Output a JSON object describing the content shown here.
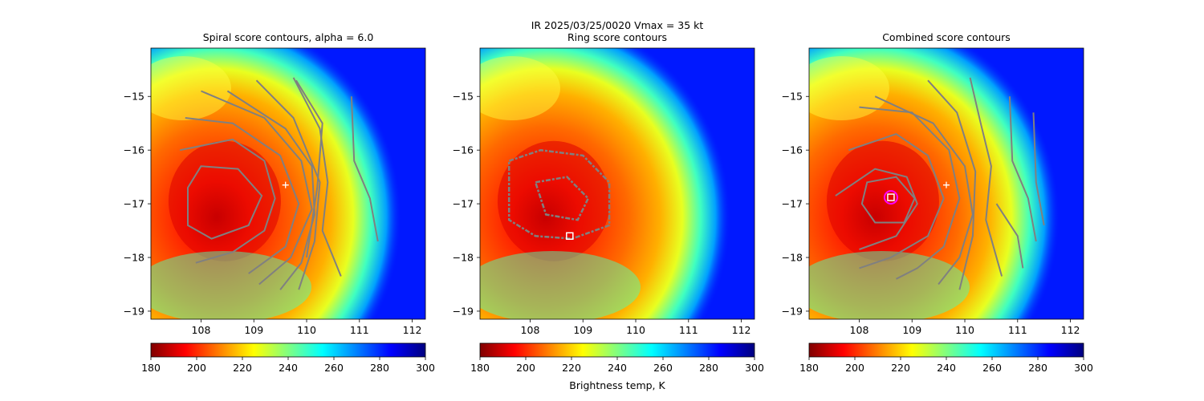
{
  "figure": {
    "suptitle_line1": "IR  2025/03/25/0020    Vmax = 35 kt"
  },
  "colorbar": {
    "label": "Brightness temp, K",
    "range": [
      180,
      300
    ],
    "ticks": [
      180,
      200,
      220,
      240,
      260,
      280,
      300
    ],
    "colormap": "jet_r",
    "stops": [
      "#800000",
      "#ff0000",
      "#ff8000",
      "#ffff00",
      "#80ff80",
      "#00ffff",
      "#0080ff",
      "#0000ff",
      "#000080"
    ]
  },
  "colors": {
    "contour": "#808080",
    "marker_white": "#ffffff",
    "marker_magenta": "#ff00ff"
  },
  "chart_data": [
    {
      "type": "heatmap",
      "title": "Spiral score contours, alpha =  6.0",
      "xlim": [
        107.05,
        112.25
      ],
      "ylim": [
        -19.15,
        -14.1
      ],
      "x_ticks": [
        108,
        109,
        110,
        111,
        112
      ],
      "y_ticks": [
        -15,
        -16,
        -17,
        -18,
        -19
      ],
      "cold_center": {
        "lon": 108.6,
        "lat": -16.95
      },
      "contour_arcs": [
        {
          "lon": [
            107.6,
            108.6,
            109.2,
            109.4,
            109.2,
            108.6,
            107.9
          ],
          "lat": [
            -16.0,
            -15.8,
            -16.2,
            -16.9,
            -17.5,
            -17.9,
            -18.1
          ]
        },
        {
          "lon": [
            107.7,
            108.6,
            109.5,
            109.85,
            109.6,
            108.9
          ],
          "lat": [
            -15.4,
            -15.5,
            -16.1,
            -17.0,
            -17.8,
            -18.3
          ]
        },
        {
          "lon": [
            108.0,
            109.2,
            109.9,
            110.1,
            109.7,
            109.1
          ],
          "lat": [
            -14.9,
            -15.4,
            -16.2,
            -17.1,
            -18.0,
            -18.5
          ]
        },
        {
          "lon": [
            108.5,
            109.6,
            110.1,
            110.15,
            109.9,
            109.5
          ],
          "lat": [
            -14.9,
            -15.6,
            -16.3,
            -17.2,
            -18.1,
            -18.6
          ]
        },
        {
          "lon": [
            109.05,
            109.75,
            110.25,
            110.15,
            109.85
          ],
          "lat": [
            -14.7,
            -15.4,
            -16.6,
            -17.7,
            -18.6
          ]
        },
        {
          "lon": [
            109.8,
            110.3,
            110.2,
            110.0
          ],
          "lat": [
            -14.7,
            -15.5,
            -16.7,
            -18.0
          ]
        },
        {
          "lon": [
            109.75,
            110.25,
            110.4,
            110.3,
            110.65
          ],
          "lat": [
            -14.65,
            -15.6,
            -16.6,
            -17.5,
            -18.35
          ]
        },
        {
          "lon": [
            110.85,
            110.9,
            111.2,
            111.35
          ],
          "lat": [
            -15.0,
            -16.2,
            -16.9,
            -17.7
          ]
        }
      ],
      "closed_contours": [
        {
          "lon": [
            108.0,
            108.7,
            109.15,
            108.9,
            108.2,
            107.75,
            107.75,
            108.0
          ],
          "lat": [
            -16.3,
            -16.35,
            -16.85,
            -17.4,
            -17.65,
            -17.4,
            -16.7,
            -16.3
          ]
        }
      ],
      "markers": [
        {
          "shape": "plus",
          "lon": 109.6,
          "lat": -16.65,
          "color": "#ffffff"
        }
      ]
    },
    {
      "type": "heatmap",
      "title": "Ring score contours",
      "xlim": [
        107.05,
        112.25
      ],
      "ylim": [
        -19.15,
        -14.1
      ],
      "x_ticks": [
        108,
        109,
        110,
        111,
        112
      ],
      "y_ticks": [
        -15,
        -16,
        -17,
        -18,
        -19
      ],
      "cold_center": {
        "lon": 108.6,
        "lat": -16.95
      },
      "contour_arcs": [],
      "closed_contours": [
        {
          "lon": [
            107.6,
            108.2,
            109.0,
            109.5,
            109.5,
            108.8,
            108.1,
            107.6,
            107.6
          ],
          "lat": [
            -16.2,
            -16.0,
            -16.1,
            -16.6,
            -17.4,
            -17.65,
            -17.6,
            -17.3,
            -16.2
          ]
        },
        {
          "lon": [
            108.1,
            108.7,
            109.1,
            108.9,
            108.3,
            108.1
          ],
          "lat": [
            -16.6,
            -16.5,
            -16.9,
            -17.3,
            -17.2,
            -16.6
          ]
        }
      ],
      "markers": [
        {
          "shape": "square",
          "lon": 108.75,
          "lat": -17.6,
          "color": "#ffffff"
        }
      ]
    },
    {
      "type": "heatmap",
      "title": "Combined score contours",
      "xlim": [
        107.05,
        112.25
      ],
      "ylim": [
        -19.15,
        -14.1
      ],
      "x_ticks": [
        108,
        109,
        110,
        111,
        112
      ],
      "y_ticks": [
        -15,
        -16,
        -17,
        -18,
        -19
      ],
      "cold_center": {
        "lon": 108.6,
        "lat": -16.95
      },
      "contour_arcs": [
        {
          "lon": [
            107.55,
            108.3,
            108.9,
            109.1,
            108.7,
            108.0
          ],
          "lat": [
            -16.85,
            -16.35,
            -16.5,
            -17.0,
            -17.6,
            -17.85
          ]
        },
        {
          "lon": [
            107.8,
            108.7,
            109.3,
            109.6,
            109.3,
            108.6,
            108.0
          ],
          "lat": [
            -16.0,
            -15.7,
            -16.1,
            -16.9,
            -17.6,
            -18.0,
            -18.2
          ]
        },
        {
          "lon": [
            108.0,
            109.0,
            109.7,
            109.9,
            109.6,
            109.1,
            108.7
          ],
          "lat": [
            -15.2,
            -15.3,
            -16.0,
            -16.9,
            -17.8,
            -18.2,
            -18.4
          ]
        },
        {
          "lon": [
            108.3,
            109.4,
            110.0,
            110.15,
            109.9,
            109.5
          ],
          "lat": [
            -15.0,
            -15.5,
            -16.3,
            -17.2,
            -18.0,
            -18.5
          ]
        },
        {
          "lon": [
            109.3,
            109.85,
            110.2,
            110.15,
            109.9
          ],
          "lat": [
            -14.7,
            -15.3,
            -16.4,
            -17.6,
            -18.6
          ]
        },
        {
          "lon": [
            110.1,
            110.3,
            110.5,
            110.4,
            110.7
          ],
          "lat": [
            -14.65,
            -15.5,
            -16.3,
            -17.3,
            -18.35
          ]
        },
        {
          "lon": [
            110.85,
            110.9,
            111.2,
            111.35
          ],
          "lat": [
            -15.0,
            -16.2,
            -16.9,
            -17.7
          ]
        },
        {
          "lon": [
            111.3,
            111.35,
            111.5
          ],
          "lat": [
            -15.3,
            -16.6,
            -17.4
          ]
        },
        {
          "lon": [
            110.6,
            111.0,
            111.1
          ],
          "lat": [
            -17.0,
            -17.6,
            -18.2
          ]
        }
      ],
      "closed_contours": [
        {
          "lon": [
            108.15,
            108.7,
            109.05,
            108.85,
            108.3,
            108.05,
            108.15
          ],
          "lat": [
            -16.6,
            -16.5,
            -16.9,
            -17.35,
            -17.35,
            -17.0,
            -16.6
          ]
        }
      ],
      "markers": [
        {
          "shape": "plus",
          "lon": 109.65,
          "lat": -16.65,
          "color": "#ffffff"
        },
        {
          "shape": "circle",
          "lon": 108.6,
          "lat": -16.88,
          "color": "#ff00ff"
        },
        {
          "shape": "square",
          "lon": 108.6,
          "lat": -16.88,
          "color": "#ffffff"
        }
      ]
    }
  ]
}
